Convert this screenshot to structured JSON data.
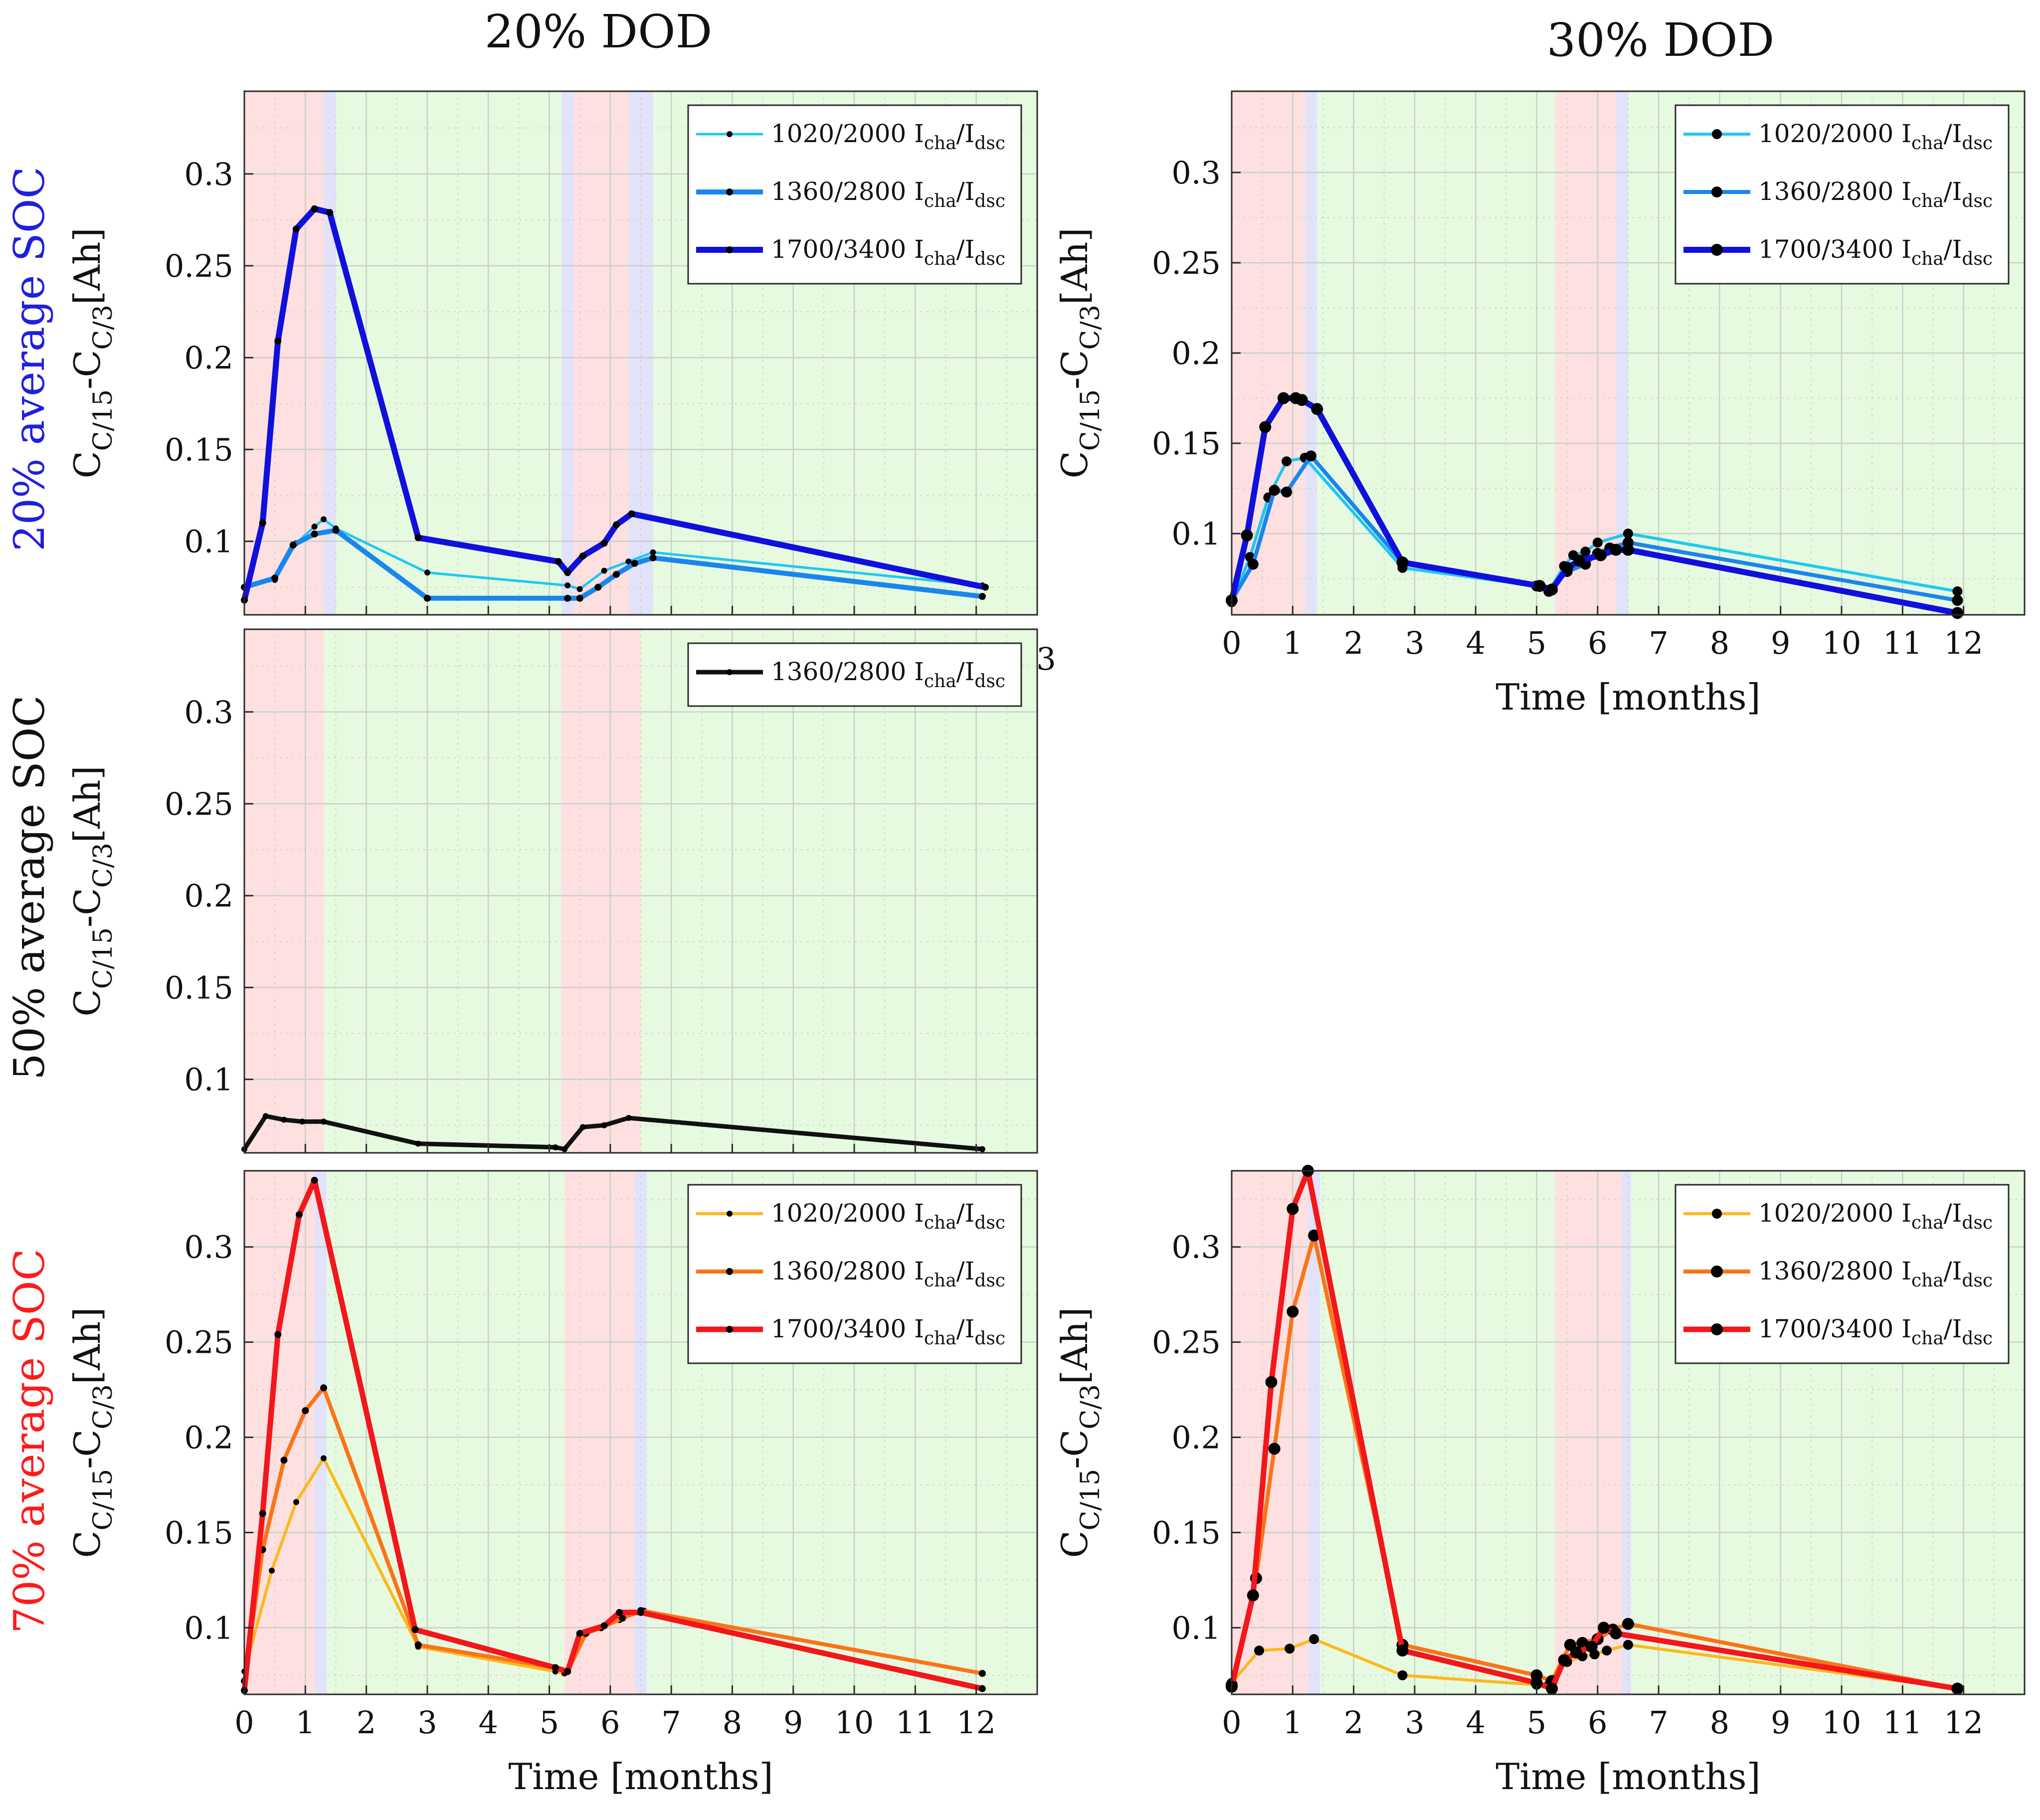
{
  "figure": {
    "col_titles": [
      "20% DOD",
      "30% DOD"
    ],
    "row_labels": [
      {
        "text": "20% average SOC",
        "color": "#1f1fe0"
      },
      {
        "text": "50% average SOC",
        "color": "#111111"
      },
      {
        "text": "70% average SOC",
        "color": "#ff1a1a"
      }
    ],
    "stray_tick": "3",
    "ylabel": {
      "main": "C",
      "sub1": "C/15",
      "mid": "-C",
      "sub2": "C/3",
      "unit": "[Ah]"
    },
    "xlabel": "Time [months]",
    "xticks": [
      "0",
      "1",
      "2",
      "3",
      "4",
      "5",
      "6",
      "7",
      "8",
      "9",
      "10",
      "11",
      "12"
    ],
    "yticks": [
      "0.1",
      "0.15",
      "0.2",
      "0.25",
      "0.3"
    ],
    "legend_suffix": {
      "I": "I",
      "cha": "cha",
      "slash": "/I",
      "dsc": "dsc"
    },
    "phase_colors": {
      "red": "#ffe0e0",
      "blue": "#e2e2fb",
      "green": "#e6fae0"
    },
    "grid_color": "#c9cfc9"
  },
  "chart_data": [
    {
      "type": "line",
      "id": "soc20_dod20",
      "title": "20% DOD",
      "row_label": "20% average SOC",
      "xlim": [
        0,
        13
      ],
      "ylim": [
        0.06,
        0.345
      ],
      "show_xticks": false,
      "phases": [
        [
          "red",
          0,
          1.3
        ],
        [
          "blue",
          1.3,
          1.5
        ],
        [
          "green",
          1.5,
          5.2
        ],
        [
          "blue",
          5.2,
          5.4
        ],
        [
          "red",
          5.4,
          6.3
        ],
        [
          "blue",
          6.3,
          6.7
        ],
        [
          "green",
          6.7,
          13
        ]
      ],
      "series": [
        {
          "name": "1020/2000",
          "color": "#1ec8f2",
          "width": 5,
          "marker": 6,
          "x": [
            0,
            0.5,
            0.85,
            1.15,
            1.3,
            1.5,
            3,
            5.3,
            5.5,
            5.9,
            6.3,
            6.7,
            12.1
          ],
          "y": [
            0.075,
            0.079,
            0.099,
            0.108,
            0.112,
            0.107,
            0.083,
            0.076,
            0.074,
            0.084,
            0.089,
            0.094,
            0.076
          ]
        },
        {
          "name": "1360/2800",
          "color": "#1a86ec",
          "width": 10,
          "marker": 7,
          "x": [
            0,
            0.5,
            0.8,
            1.15,
            1.5,
            3,
            5.3,
            5.5,
            5.8,
            6.1,
            6.4,
            6.7,
            12.1
          ],
          "y": [
            0.075,
            0.08,
            0.098,
            0.104,
            0.106,
            0.069,
            0.069,
            0.069,
            0.075,
            0.082,
            0.088,
            0.091,
            0.07
          ]
        },
        {
          "name": "1700/3400",
          "color": "#1010dc",
          "width": 12,
          "marker": 7,
          "x": [
            0,
            0.3,
            0.55,
            0.85,
            1.15,
            1.4,
            2.85,
            5.15,
            5.3,
            5.55,
            5.9,
            6.1,
            6.35,
            12.15
          ],
          "y": [
            0.068,
            0.11,
            0.209,
            0.27,
            0.281,
            0.279,
            0.102,
            0.089,
            0.083,
            0.092,
            0.099,
            0.109,
            0.115,
            0.075
          ]
        }
      ]
    },
    {
      "type": "line",
      "id": "soc20_dod30",
      "title": "30% DOD",
      "row_label": "20% average SOC",
      "xlim": [
        0,
        13
      ],
      "ylim": [
        0.055,
        0.345
      ],
      "show_xticks": true,
      "phases": [
        [
          "red",
          0,
          1.2
        ],
        [
          "blue",
          1.2,
          1.4
        ],
        [
          "green",
          1.4,
          5.3
        ],
        [
          "red",
          5.3,
          6.3
        ],
        [
          "blue",
          6.3,
          6.5
        ],
        [
          "green",
          6.5,
          13
        ]
      ],
      "series": [
        {
          "name": "1020/2000",
          "color": "#1ec8f2",
          "width": 6,
          "marker": 10,
          "x": [
            0,
            0.3,
            0.6,
            0.9,
            1.2,
            2.8,
            5,
            5.2,
            5.45,
            5.6,
            5.8,
            6.0,
            6.5,
            11.9
          ],
          "y": [
            0.062,
            0.087,
            0.12,
            0.14,
            0.142,
            0.081,
            0.071,
            0.068,
            0.082,
            0.088,
            0.09,
            0.095,
            0.1,
            0.068
          ]
        },
        {
          "name": "1360/2800",
          "color": "#1a86ec",
          "width": 8,
          "marker": 11,
          "x": [
            0,
            0.35,
            0.7,
            0.9,
            1.3,
            2.8,
            5,
            5.2,
            5.5,
            5.8,
            6.0,
            6.2,
            6.5,
            11.9
          ],
          "y": [
            0.063,
            0.083,
            0.124,
            0.123,
            0.143,
            0.084,
            0.071,
            0.068,
            0.079,
            0.083,
            0.089,
            0.092,
            0.095,
            0.063
          ]
        },
        {
          "name": "1700/3400",
          "color": "#1010dc",
          "width": 12,
          "marker": 12,
          "x": [
            0,
            0.25,
            0.55,
            0.85,
            1.05,
            1.15,
            1.4,
            2.8,
            5.05,
            5.25,
            5.5,
            5.7,
            6.05,
            6.3,
            6.5,
            11.9
          ],
          "y": [
            0.063,
            0.099,
            0.159,
            0.175,
            0.175,
            0.174,
            0.169,
            0.084,
            0.071,
            0.069,
            0.081,
            0.085,
            0.088,
            0.091,
            0.091,
            0.056
          ]
        }
      ]
    },
    {
      "type": "line",
      "id": "soc50_dod20",
      "title": "",
      "row_label": "50% average SOC",
      "xlim": [
        0,
        13
      ],
      "ylim": [
        0.06,
        0.345
      ],
      "show_xticks": false,
      "phases": [
        [
          "red",
          0,
          1.3
        ],
        [
          "green",
          1.3,
          5.2
        ],
        [
          "red",
          5.2,
          6.5
        ],
        [
          "green",
          6.5,
          13
        ]
      ],
      "series": [
        {
          "name": "1360/2800",
          "color": "#111111",
          "width": 9,
          "marker": 6,
          "x": [
            0,
            0.35,
            0.65,
            0.95,
            1.3,
            2.85,
            5.1,
            5.25,
            5.55,
            5.9,
            6.3,
            12.1
          ],
          "y": [
            0.062,
            0.08,
            0.078,
            0.077,
            0.077,
            0.065,
            0.063,
            0.062,
            0.074,
            0.075,
            0.079,
            0.062
          ]
        }
      ]
    },
    {
      "type": "line",
      "id": "soc70_dod20",
      "title": "",
      "row_label": "70% average SOC",
      "xlim": [
        0,
        13
      ],
      "ylim": [
        0.065,
        0.34
      ],
      "show_xticks": true,
      "phases": [
        [
          "red",
          0,
          1.15
        ],
        [
          "blue",
          1.15,
          1.35
        ],
        [
          "green",
          1.35,
          5.25
        ],
        [
          "red",
          5.25,
          6.4
        ],
        [
          "blue",
          6.4,
          6.6
        ],
        [
          "green",
          6.6,
          13
        ]
      ],
      "series": [
        {
          "name": "1020/2000",
          "color": "#fbb91c",
          "width": 6,
          "marker": 6,
          "x": [
            0,
            0.45,
            0.85,
            1.3,
            2.85,
            5.1,
            5.25,
            5.6,
            6.15,
            6.55,
            12.1
          ],
          "y": [
            0.077,
            0.13,
            0.166,
            0.189,
            0.09,
            0.077,
            0.076,
            0.097,
            0.104,
            0.109,
            0.076
          ]
        },
        {
          "name": "1360/2800",
          "color": "#fb7418",
          "width": 8,
          "marker": 7,
          "x": [
            0,
            0.3,
            0.65,
            1.0,
            1.3,
            2.85,
            5.1,
            5.3,
            5.6,
            5.85,
            6.2,
            6.5,
            12.1
          ],
          "y": [
            0.072,
            0.141,
            0.188,
            0.214,
            0.226,
            0.091,
            0.079,
            0.077,
            0.097,
            0.1,
            0.105,
            0.109,
            0.076
          ]
        },
        {
          "name": "1700/3400",
          "color": "#f3161a",
          "width": 11,
          "marker": 7,
          "x": [
            0,
            0.3,
            0.55,
            0.9,
            1.15,
            2.8,
            5.1,
            5.3,
            5.5,
            5.9,
            6.15,
            6.5,
            12.1
          ],
          "y": [
            0.067,
            0.16,
            0.254,
            0.317,
            0.335,
            0.099,
            0.079,
            0.077,
            0.097,
            0.101,
            0.108,
            0.108,
            0.068
          ]
        }
      ]
    },
    {
      "type": "line",
      "id": "soc70_dod30",
      "title": "",
      "row_label": "70% average SOC",
      "xlim": [
        0,
        13
      ],
      "ylim": [
        0.065,
        0.34
      ],
      "show_xticks": true,
      "phases": [
        [
          "red",
          0,
          1.25
        ],
        [
          "blue",
          1.25,
          1.45
        ],
        [
          "green",
          1.45,
          5.3
        ],
        [
          "red",
          5.3,
          6.4
        ],
        [
          "blue",
          6.4,
          6.55
        ],
        [
          "green",
          6.55,
          13
        ]
      ],
      "series": [
        {
          "name": "1020/2000",
          "color": "#fbb91c",
          "width": 6,
          "marker": 10,
          "x": [
            0,
            0.45,
            0.95,
            1.35,
            2.8,
            5.0,
            5.2,
            5.5,
            5.75,
            5.95,
            6.15,
            6.5,
            11.9
          ],
          "y": [
            0.071,
            0.088,
            0.089,
            0.094,
            0.075,
            0.07,
            0.07,
            0.082,
            0.085,
            0.086,
            0.088,
            0.091,
            0.068
          ]
        },
        {
          "name": "1360/2800",
          "color": "#fb7418",
          "width": 8,
          "marker": 12,
          "x": [
            0,
            0.4,
            0.7,
            1.0,
            1.35,
            2.8,
            5.0,
            5.25,
            5.55,
            5.75,
            6.0,
            6.25,
            6.5,
            11.9
          ],
          "y": [
            0.07,
            0.126,
            0.194,
            0.266,
            0.306,
            0.091,
            0.075,
            0.072,
            0.091,
            0.092,
            0.094,
            0.099,
            0.102,
            0.068
          ]
        },
        {
          "name": "1700/3400",
          "color": "#f3161a",
          "width": 11,
          "marker": 12,
          "x": [
            0,
            0.35,
            0.65,
            1.0,
            1.25,
            2.8,
            5.0,
            5.25,
            5.45,
            5.65,
            5.9,
            6.1,
            6.3,
            11.9
          ],
          "y": [
            0.069,
            0.117,
            0.229,
            0.32,
            0.34,
            0.088,
            0.071,
            0.068,
            0.083,
            0.087,
            0.09,
            0.1,
            0.097,
            0.068
          ]
        }
      ]
    }
  ]
}
